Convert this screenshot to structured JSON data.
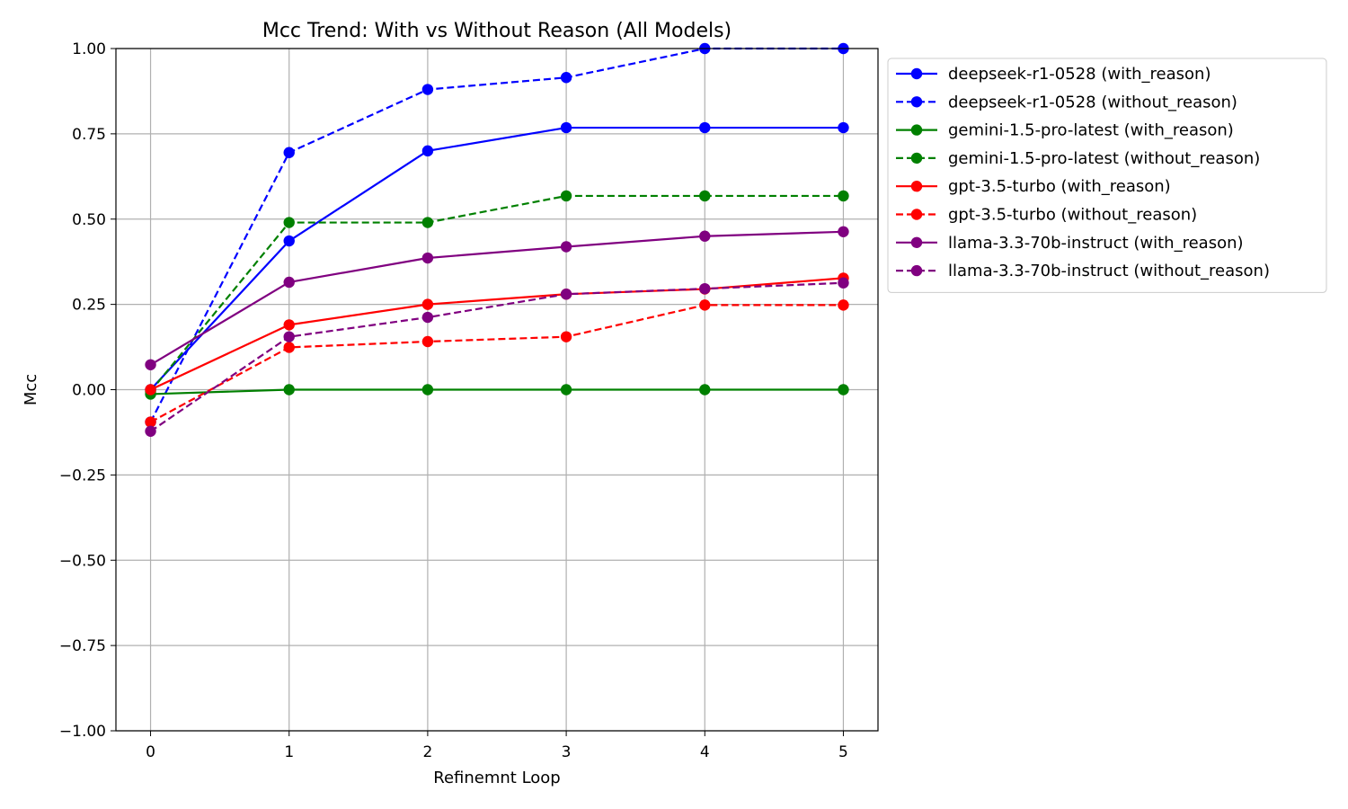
{
  "chart_data": {
    "type": "line",
    "title": "Mcc Trend: With vs Without Reason (All Models)",
    "xlabel": "Refinemnt Loop",
    "ylabel": "Mcc",
    "x": [
      0,
      1,
      2,
      3,
      4,
      5
    ],
    "x_ticks": [
      "0",
      "1",
      "2",
      "3",
      "4",
      "5"
    ],
    "ylim": [
      -1.0,
      1.0
    ],
    "y_ticks": [
      "−1.00",
      "−0.75",
      "−0.50",
      "−0.25",
      "0.00",
      "0.25",
      "0.50",
      "0.75",
      "1.00"
    ],
    "y_tick_values": [
      -1.0,
      -0.75,
      -0.5,
      -0.25,
      0.0,
      0.25,
      0.5,
      0.75,
      1.0
    ],
    "grid": true,
    "legend_position": "outside-top-right",
    "series": [
      {
        "name": "deepseek-r1-0528 (with_reason)",
        "color": "#0000ff",
        "dash": "solid",
        "values": [
          0.0,
          0.436,
          0.7,
          0.768,
          0.768,
          0.768
        ]
      },
      {
        "name": "deepseek-r1-0528 (without_reason)",
        "color": "#0000ff",
        "dash": "dashed",
        "values": [
          -0.095,
          0.695,
          0.88,
          0.915,
          1.0,
          1.0
        ]
      },
      {
        "name": "gemini-1.5-pro-latest (with_reason)",
        "color": "#008000",
        "dash": "solid",
        "values": [
          -0.013,
          0.0,
          0.0,
          0.0,
          0.0,
          0.0
        ]
      },
      {
        "name": "gemini-1.5-pro-latest (without_reason)",
        "color": "#008000",
        "dash": "dashed",
        "values": [
          -0.005,
          0.49,
          0.49,
          0.568,
          0.568,
          0.568
        ]
      },
      {
        "name": "gpt-3.5-turbo (with_reason)",
        "color": "#ff0000",
        "dash": "solid",
        "values": [
          0.0,
          0.19,
          0.25,
          0.28,
          0.295,
          0.327
        ]
      },
      {
        "name": "gpt-3.5-turbo (without_reason)",
        "color": "#ff0000",
        "dash": "dashed",
        "values": [
          -0.095,
          0.124,
          0.141,
          0.155,
          0.248,
          0.248
        ]
      },
      {
        "name": "llama-3.3-70b-instruct (with_reason)",
        "color": "#800080",
        "dash": "solid",
        "values": [
          0.073,
          0.315,
          0.386,
          0.419,
          0.45,
          0.463
        ]
      },
      {
        "name": "llama-3.3-70b-instruct (without_reason)",
        "color": "#800080",
        "dash": "dashed",
        "values": [
          -0.122,
          0.155,
          0.212,
          0.28,
          0.296,
          0.313
        ]
      }
    ]
  }
}
